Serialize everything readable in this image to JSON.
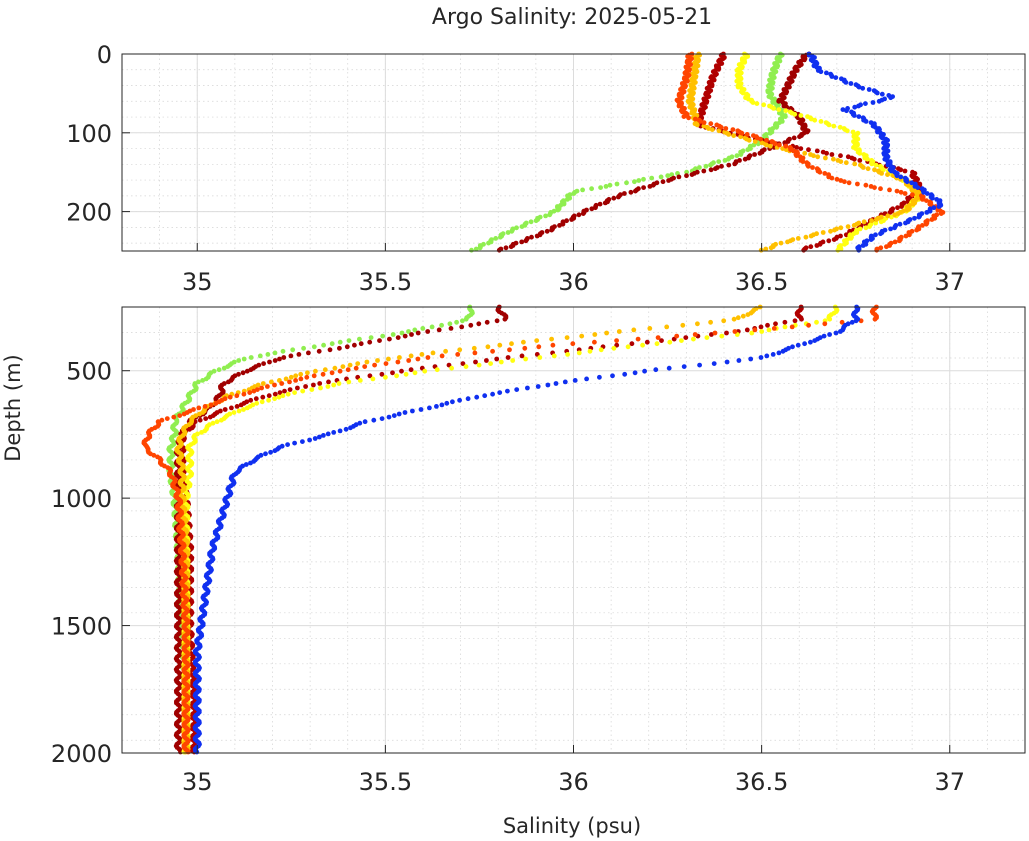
{
  "chart_data": {
    "type": "scatter",
    "title": "Argo Salinity: 2025-05-21",
    "xlabel": "Salinity (psu)",
    "ylabel": "Depth (m)",
    "xlim": [
      34.8,
      37.2
    ],
    "xticks": [
      35,
      35.5,
      36,
      36.5,
      37
    ],
    "xtick_labels": [
      "35",
      "35.5",
      "36",
      "36.5",
      "37"
    ],
    "grid": true,
    "minor_grid": true,
    "y_reversed": true,
    "panels": [
      {
        "name": "upper",
        "ylim": [
          0,
          250
        ],
        "yticks": [
          0,
          100,
          200
        ],
        "ytick_labels": [
          "0",
          "100",
          "200"
        ],
        "show_ylabel": false,
        "show_xlabel": false
      },
      {
        "name": "lower",
        "ylim": [
          250,
          2000
        ],
        "yticks": [
          500,
          1000,
          1500,
          2000
        ],
        "ytick_labels": [
          "500",
          "1000",
          "1500",
          "2000"
        ],
        "show_ylabel": true,
        "show_xlabel": true
      }
    ],
    "series": [
      {
        "color": "#00d000",
        "display_color": "#90ee50",
        "profile": [
          [
            0,
            36.55
          ],
          [
            25,
            36.53
          ],
          [
            50,
            36.52
          ],
          [
            80,
            36.56
          ],
          [
            110,
            36.5
          ],
          [
            130,
            36.43
          ],
          [
            150,
            36.3
          ],
          [
            175,
            36.0
          ],
          [
            200,
            35.95
          ],
          [
            225,
            35.83
          ],
          [
            250,
            35.73
          ],
          [
            300,
            35.72
          ],
          [
            350,
            35.55
          ],
          [
            400,
            35.33
          ],
          [
            450,
            35.13
          ],
          [
            500,
            35.05
          ],
          [
            550,
            35.0
          ],
          [
            600,
            34.98
          ],
          [
            650,
            34.96
          ],
          [
            700,
            34.94
          ],
          [
            750,
            34.94
          ],
          [
            800,
            34.93
          ],
          [
            900,
            34.93
          ],
          [
            1000,
            34.94
          ],
          [
            1200,
            34.95
          ],
          [
            1500,
            34.96
          ],
          [
            1800,
            34.97
          ],
          [
            2000,
            34.97
          ]
        ]
      },
      {
        "color": "#8b0000",
        "display_color": "#a00000",
        "profile": [
          [
            0,
            36.62
          ],
          [
            20,
            36.59
          ],
          [
            40,
            36.57
          ],
          [
            60,
            36.55
          ],
          [
            80,
            36.6
          ],
          [
            100,
            36.62
          ],
          [
            120,
            36.52
          ],
          [
            140,
            36.42
          ],
          [
            160,
            36.25
          ],
          [
            180,
            36.12
          ],
          [
            200,
            36.03
          ],
          [
            225,
            35.93
          ],
          [
            250,
            35.8
          ],
          [
            300,
            35.82
          ],
          [
            350,
            35.6
          ],
          [
            400,
            35.42
          ],
          [
            450,
            35.22
          ],
          [
            500,
            35.13
          ],
          [
            550,
            35.07
          ],
          [
            600,
            35.06
          ],
          [
            650,
            35.03
          ],
          [
            700,
            34.98
          ],
          [
            750,
            34.96
          ],
          [
            800,
            34.95
          ],
          [
            900,
            34.95
          ],
          [
            1000,
            34.95
          ],
          [
            1200,
            34.95
          ],
          [
            1500,
            34.95
          ],
          [
            1800,
            34.95
          ],
          [
            2000,
            34.95
          ]
        ]
      },
      {
        "color": "#a00000",
        "display_color": "#b00000",
        "profile": [
          [
            0,
            36.4
          ],
          [
            30,
            36.37
          ],
          [
            60,
            36.35
          ],
          [
            90,
            36.33
          ],
          [
            110,
            36.5
          ],
          [
            130,
            36.72
          ],
          [
            150,
            36.9
          ],
          [
            170,
            36.92
          ],
          [
            190,
            36.88
          ],
          [
            210,
            36.8
          ],
          [
            230,
            36.72
          ],
          [
            250,
            36.6
          ],
          [
            300,
            36.6
          ],
          [
            350,
            36.42
          ],
          [
            400,
            36.12
          ],
          [
            450,
            35.82
          ],
          [
            500,
            35.55
          ],
          [
            550,
            35.32
          ],
          [
            600,
            35.18
          ],
          [
            650,
            35.08
          ],
          [
            700,
            35.0
          ],
          [
            750,
            34.96
          ],
          [
            800,
            34.96
          ],
          [
            900,
            34.96
          ],
          [
            1000,
            34.97
          ],
          [
            1200,
            34.98
          ],
          [
            1500,
            34.98
          ],
          [
            1800,
            34.99
          ],
          [
            2000,
            34.99
          ]
        ]
      },
      {
        "color": "#ffff00",
        "display_color": "#ffff10",
        "profile": [
          [
            0,
            36.46
          ],
          [
            20,
            36.44
          ],
          [
            40,
            36.44
          ],
          [
            60,
            36.47
          ],
          [
            80,
            36.62
          ],
          [
            100,
            36.75
          ],
          [
            120,
            36.75
          ],
          [
            140,
            36.8
          ],
          [
            160,
            36.88
          ],
          [
            180,
            36.92
          ],
          [
            200,
            36.88
          ],
          [
            225,
            36.75
          ],
          [
            250,
            36.7
          ],
          [
            300,
            36.68
          ],
          [
            350,
            36.48
          ],
          [
            400,
            36.18
          ],
          [
            450,
            35.9
          ],
          [
            500,
            35.62
          ],
          [
            550,
            35.38
          ],
          [
            600,
            35.22
          ],
          [
            650,
            35.12
          ],
          [
            700,
            35.05
          ],
          [
            750,
            35.0
          ],
          [
            800,
            34.98
          ],
          [
            900,
            34.98
          ],
          [
            1000,
            34.97
          ],
          [
            1200,
            34.97
          ],
          [
            1500,
            34.97
          ],
          [
            1800,
            34.97
          ],
          [
            2000,
            34.97
          ]
        ]
      },
      {
        "color": "#ffc000",
        "display_color": "#ffc000",
        "profile": [
          [
            0,
            36.33
          ],
          [
            30,
            36.32
          ],
          [
            60,
            36.31
          ],
          [
            90,
            36.33
          ],
          [
            120,
            36.55
          ],
          [
            140,
            36.75
          ],
          [
            160,
            36.88
          ],
          [
            180,
            36.92
          ],
          [
            200,
            36.88
          ],
          [
            220,
            36.72
          ],
          [
            240,
            36.55
          ],
          [
            250,
            36.5
          ],
          [
            300,
            36.43
          ],
          [
            350,
            36.1
          ],
          [
            400,
            35.8
          ],
          [
            450,
            35.52
          ],
          [
            500,
            35.32
          ],
          [
            550,
            35.18
          ],
          [
            600,
            35.08
          ],
          [
            650,
            35.02
          ],
          [
            700,
            34.98
          ],
          [
            750,
            34.96
          ],
          [
            800,
            34.95
          ],
          [
            900,
            34.96
          ],
          [
            1000,
            34.96
          ],
          [
            1200,
            34.97
          ],
          [
            1500,
            34.97
          ],
          [
            1800,
            34.97
          ],
          [
            2000,
            34.97
          ]
        ]
      },
      {
        "color": "#ff4000",
        "display_color": "#ff4500",
        "profile": [
          [
            0,
            36.31
          ],
          [
            30,
            36.3
          ],
          [
            60,
            36.28
          ],
          [
            80,
            36.3
          ],
          [
            100,
            36.45
          ],
          [
            120,
            36.58
          ],
          [
            140,
            36.62
          ],
          [
            160,
            36.7
          ],
          [
            180,
            36.92
          ],
          [
            200,
            36.98
          ],
          [
            220,
            36.92
          ],
          [
            240,
            36.85
          ],
          [
            250,
            36.8
          ],
          [
            300,
            36.8
          ],
          [
            350,
            36.4
          ],
          [
            400,
            35.95
          ],
          [
            450,
            35.6
          ],
          [
            500,
            35.38
          ],
          [
            550,
            35.22
          ],
          [
            600,
            35.1
          ],
          [
            650,
            35.0
          ],
          [
            700,
            34.9
          ],
          [
            750,
            34.87
          ],
          [
            800,
            34.86
          ],
          [
            850,
            34.9
          ],
          [
            900,
            34.93
          ],
          [
            1000,
            34.95
          ],
          [
            1200,
            34.96
          ],
          [
            1500,
            34.97
          ],
          [
            1800,
            34.97
          ],
          [
            2000,
            34.97
          ]
        ]
      },
      {
        "color": "#0000ff",
        "display_color": "#1030f0",
        "profile": [
          [
            0,
            36.63
          ],
          [
            20,
            36.65
          ],
          [
            40,
            36.75
          ],
          [
            55,
            36.85
          ],
          [
            70,
            36.72
          ],
          [
            90,
            36.8
          ],
          [
            110,
            36.83
          ],
          [
            130,
            36.83
          ],
          [
            150,
            36.85
          ],
          [
            170,
            36.92
          ],
          [
            190,
            36.98
          ],
          [
            210,
            36.9
          ],
          [
            230,
            36.8
          ],
          [
            250,
            36.75
          ],
          [
            300,
            36.75
          ],
          [
            350,
            36.7
          ],
          [
            400,
            36.6
          ],
          [
            450,
            36.5
          ],
          [
            500,
            36.2
          ],
          [
            550,
            35.95
          ],
          [
            600,
            35.75
          ],
          [
            650,
            35.6
          ],
          [
            700,
            35.45
          ],
          [
            750,
            35.35
          ],
          [
            800,
            35.22
          ],
          [
            850,
            35.15
          ],
          [
            900,
            35.1
          ],
          [
            1000,
            35.08
          ],
          [
            1100,
            35.06
          ],
          [
            1200,
            35.04
          ],
          [
            1400,
            35.02
          ],
          [
            1600,
            35.0
          ],
          [
            1800,
            35.0
          ],
          [
            2000,
            35.0
          ]
        ]
      }
    ]
  }
}
